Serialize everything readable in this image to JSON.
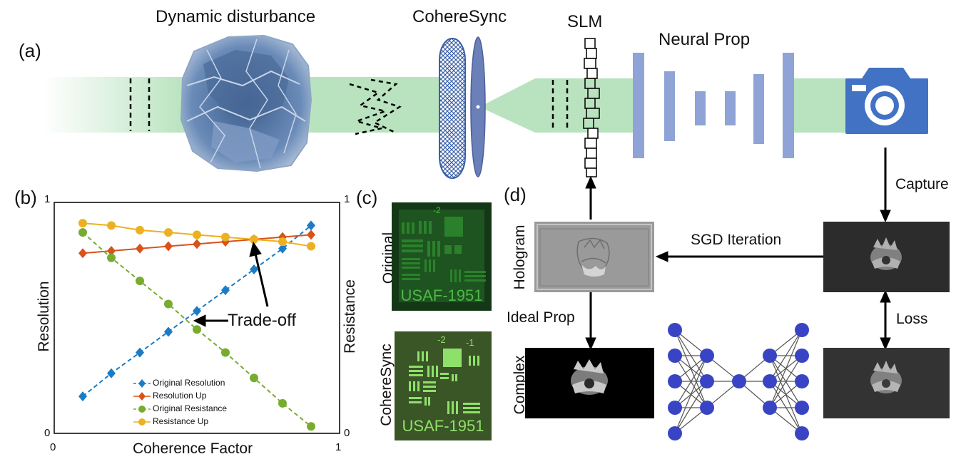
{
  "panels": {
    "a": "(a)",
    "b": "(b)",
    "c": "(c)",
    "d": "(d)"
  },
  "section_a": {
    "dynamic_disturbance": "Dynamic disturbance",
    "coheresync": "CohereSync",
    "slm": "SLM",
    "neural_prop": "Neural Prop"
  },
  "section_c": {
    "row1_label": "Original",
    "row2_label": "CohereSync",
    "usaf_text": "USAF-1951",
    "target_number_left": "-2",
    "target_number_right": "-1"
  },
  "section_d": {
    "capture": "Capture",
    "sgd_iteration": "SGD Iteration",
    "hologram": "Hologram",
    "ideal_prop": "Ideal Prop",
    "complex": "Complex",
    "loss": "Loss"
  },
  "colors": {
    "beam": "#b9e3bf",
    "camera": "#4272c4",
    "neural_layers": "#8fa3d6",
    "network_nodes": "#3944c4",
    "blue_series": "#1b7bc4",
    "red_series": "#d95219",
    "green_series": "#77ac30",
    "yellow_series": "#edb120"
  },
  "chart_data": {
    "type": "line",
    "xlabel": "Coherence Factor",
    "ylabel": "Resolution",
    "ylabel_right": "Resistance",
    "xlim": [
      0,
      1
    ],
    "ylim": [
      0,
      1
    ],
    "x_ticks": [
      "0",
      "1"
    ],
    "y_ticks_left": [
      "0",
      "1"
    ],
    "y_ticks_right": [
      "0",
      "1"
    ],
    "annotation": "Trade-off",
    "legend_position": "lower-left",
    "x": [
      0.1,
      0.2,
      0.3,
      0.4,
      0.5,
      0.6,
      0.7,
      0.8,
      0.9
    ],
    "series": [
      {
        "name": "Original Resolution",
        "style": "dashed",
        "marker": "diamond",
        "color": "#1b7bc4",
        "values": [
          0.16,
          0.26,
          0.35,
          0.44,
          0.53,
          0.62,
          0.71,
          0.8,
          0.9
        ]
      },
      {
        "name": "Resolution Up",
        "style": "solid",
        "marker": "diamond",
        "color": "#d95219",
        "values": [
          0.78,
          0.79,
          0.8,
          0.81,
          0.82,
          0.83,
          0.84,
          0.85,
          0.86
        ]
      },
      {
        "name": "Original Resistance",
        "style": "dashed",
        "marker": "circle",
        "color": "#77ac30",
        "values": [
          0.87,
          0.76,
          0.66,
          0.56,
          0.45,
          0.35,
          0.24,
          0.13,
          0.03
        ]
      },
      {
        "name": "Resistance Up",
        "style": "solid",
        "marker": "circle",
        "color": "#edb120",
        "values": [
          0.91,
          0.9,
          0.88,
          0.87,
          0.86,
          0.85,
          0.84,
          0.83,
          0.81
        ]
      }
    ]
  }
}
